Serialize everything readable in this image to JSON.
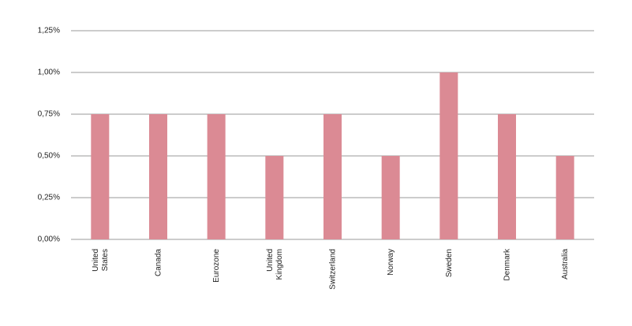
{
  "chart_data": {
    "type": "bar",
    "categories": [
      "United States",
      "Canada",
      "Eurozone",
      "United Kingdom",
      "Switzerland",
      "Norway",
      "Sweden",
      "Denmark",
      "Australia"
    ],
    "values": [
      0.75,
      0.75,
      0.75,
      0.5,
      0.75,
      0.5,
      1.0,
      0.75,
      0.5
    ],
    "color": "#db8a94",
    "ylim": [
      0,
      1.25
    ],
    "yticks": [
      {
        "value": 0,
        "label": "0,00%"
      },
      {
        "value": 0.25,
        "label": "0,25%"
      },
      {
        "value": 0.5,
        "label": "0,50%"
      },
      {
        "value": 0.75,
        "label": "0,75%"
      },
      {
        "value": 1.0,
        "label": "1,00%"
      },
      {
        "value": 1.25,
        "label": "1,25%"
      }
    ],
    "grid": true
  }
}
